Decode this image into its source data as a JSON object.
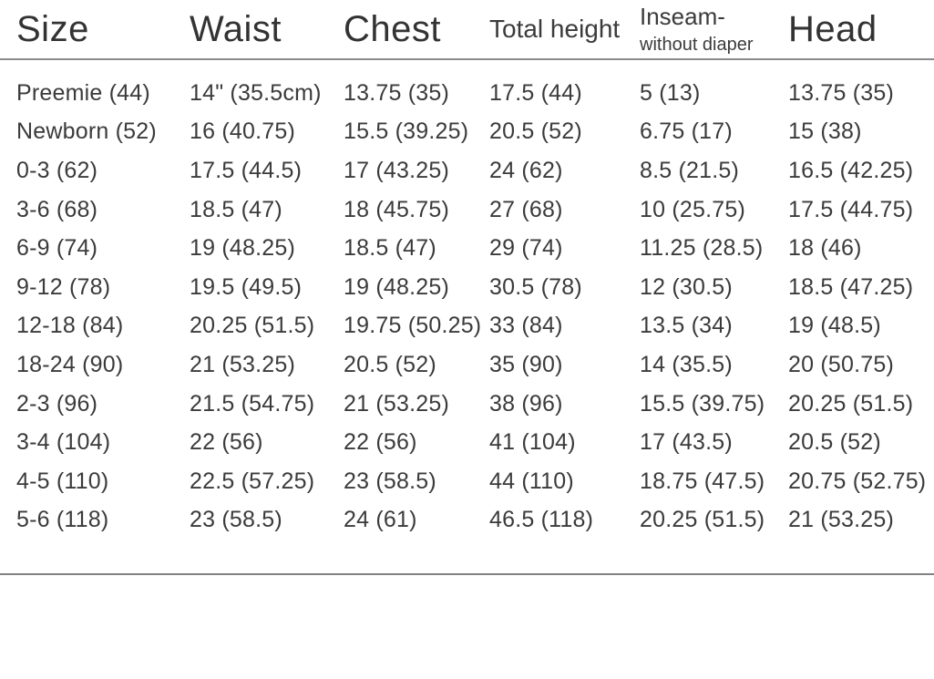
{
  "table": {
    "header": {
      "size": "Size",
      "waist": "Waist",
      "chest": "Chest",
      "total_height": "Total height",
      "inseam_line1": "Inseam-",
      "inseam_line2": "without diaper",
      "head": "Head"
    },
    "rows": [
      {
        "size": "Preemie (44)",
        "waist": "14\" (35.5cm)",
        "chest": "13.75 (35)",
        "total_height": "17.5 (44)",
        "inseam": "5 (13)",
        "head": "13.75 (35)"
      },
      {
        "size": "Newborn (52)",
        "waist": "16 (40.75)",
        "chest": "15.5 (39.25)",
        "total_height": "20.5 (52)",
        "inseam": "6.75 (17)",
        "head": "15 (38)"
      },
      {
        "size": "0-3 (62)",
        "waist": "17.5 (44.5)",
        "chest": "17 (43.25)",
        "total_height": "24 (62)",
        "inseam": "8.5 (21.5)",
        "head": "16.5 (42.25)"
      },
      {
        "size": "3-6 (68)",
        "waist": "18.5 (47)",
        "chest": "18 (45.75)",
        "total_height": "27 (68)",
        "inseam": "10 (25.75)",
        "head": "17.5 (44.75)"
      },
      {
        "size": "6-9 (74)",
        "waist": "19 (48.25)",
        "chest": "18.5 (47)",
        "total_height": "29 (74)",
        "inseam": "11.25 (28.5)",
        "head": "18 (46)"
      },
      {
        "size": "9-12 (78)",
        "waist": "19.5 (49.5)",
        "chest": "19 (48.25)",
        "total_height": "30.5 (78)",
        "inseam": "12 (30.5)",
        "head": "18.5 (47.25)"
      },
      {
        "size": "12-18 (84)",
        "waist": "20.25 (51.5)",
        "chest": "19.75 (50.25)",
        "total_height": "33 (84)",
        "inseam": "13.5 (34)",
        "head": "19 (48.5)"
      },
      {
        "size": "18-24 (90)",
        "waist": "21 (53.25)",
        "chest": "20.5 (52)",
        "total_height": "35 (90)",
        "inseam": "14 (35.5)",
        "head": "20 (50.75)"
      },
      {
        "size": "2-3 (96)",
        "waist": "21.5 (54.75)",
        "chest": "21 (53.25)",
        "total_height": "38 (96)",
        "inseam": "15.5 (39.75)",
        "head": "20.25 (51.5)"
      },
      {
        "size": "3-4 (104)",
        "waist": "22 (56)",
        "chest": "22 (56)",
        "total_height": "41 (104)",
        "inseam": "17 (43.5)",
        "head": "20.5 (52)"
      },
      {
        "size": "4-5 (110)",
        "waist": "22.5 (57.25)",
        "chest": "23 (58.5)",
        "total_height": "44 (110)",
        "inseam": "18.75 (47.5)",
        "head": "20.75 (52.75)"
      },
      {
        "size": "5-6 (118)",
        "waist": "23 (58.5)",
        "chest": "24 (61)",
        "total_height": "46.5 (118)",
        "inseam": "20.25 (51.5)",
        "head": "21 (53.25)"
      }
    ]
  },
  "colors": {
    "text": "#3b3b3b",
    "header_text": "#333333",
    "rule": "#8a8a8a",
    "background": "#ffffff"
  }
}
